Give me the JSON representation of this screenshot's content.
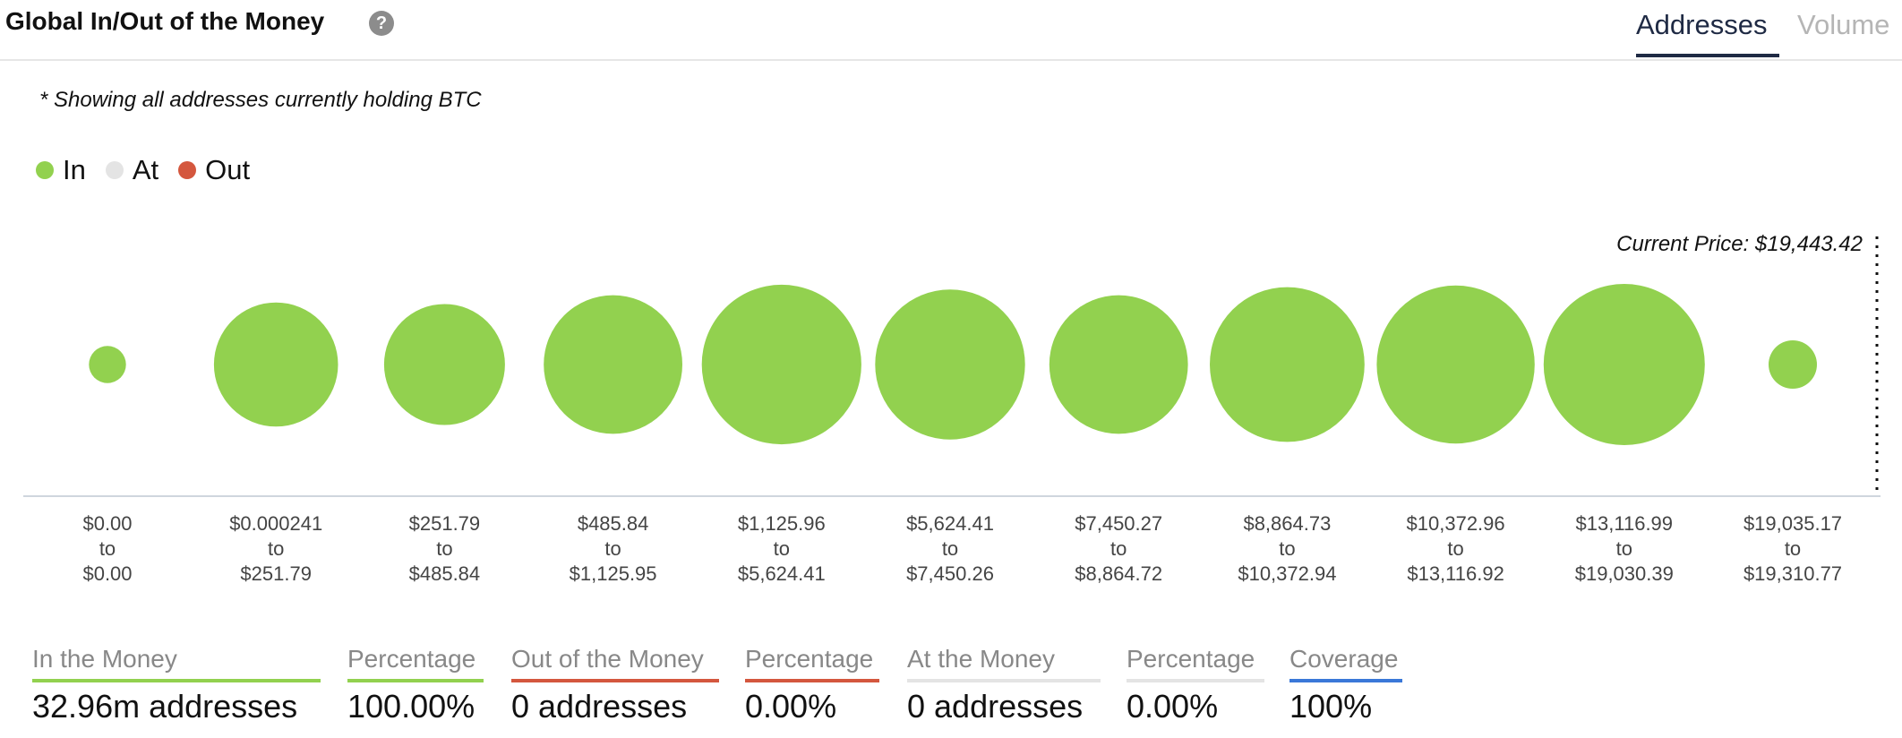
{
  "header": {
    "title": "Global In/Out of the Money",
    "help_icon": "question-circle-icon",
    "tabs": [
      {
        "label": "Addresses",
        "active": true
      },
      {
        "label": "Volume",
        "active": false
      }
    ]
  },
  "note": "* Showing all addresses currently holding BTC",
  "legend": [
    {
      "label": "In",
      "color": "#92d14f"
    },
    {
      "label": "At",
      "color": "#e4e4e4"
    },
    {
      "label": "Out",
      "color": "#d4573e"
    }
  ],
  "chart_data": {
    "type": "bubble",
    "current_price_label": "Current Price: $19,443.42",
    "series": [
      {
        "name": "In",
        "color": "#92d14f"
      }
    ],
    "categories": [
      {
        "from": "$0.00",
        "to": "$0.00",
        "relative_size": 0.23
      },
      {
        "from": "$0.000241",
        "to": "$251.79",
        "relative_size": 0.77
      },
      {
        "from": "$251.79",
        "to": "$485.84",
        "relative_size": 0.75
      },
      {
        "from": "$485.84",
        "to": "$1,125.95",
        "relative_size": 0.86
      },
      {
        "from": "$1,125.96",
        "to": "$5,624.41",
        "relative_size": 0.99
      },
      {
        "from": "$5,624.41",
        "to": "$7,450.26",
        "relative_size": 0.93
      },
      {
        "from": "$7,450.27",
        "to": "$8,864.72",
        "relative_size": 0.86
      },
      {
        "from": "$8,864.73",
        "to": "$10,372.94",
        "relative_size": 0.96
      },
      {
        "from": "$10,372.96",
        "to": "$13,116.92",
        "relative_size": 0.98
      },
      {
        "from": "$13,116.99",
        "to": "$19,030.39",
        "relative_size": 1.0
      },
      {
        "from": "$19,035.17",
        "to": "$19,310.77",
        "relative_size": 0.3
      }
    ],
    "range_connector": "to",
    "grid": false
  },
  "stats": [
    {
      "label": "In the Money",
      "value": "32.96m addresses",
      "color": "#92d14f"
    },
    {
      "label": "Percentage",
      "value": "100.00%",
      "color": "#92d14f"
    },
    {
      "label": "Out of the Money",
      "value": "0 addresses",
      "color": "#d4573e"
    },
    {
      "label": "Percentage",
      "value": "0.00%",
      "color": "#d4573e"
    },
    {
      "label": "At the Money",
      "value": "0 addresses",
      "color": "#e4e4e4"
    },
    {
      "label": "Percentage",
      "value": "0.00%",
      "color": "#e4e4e4"
    },
    {
      "label": "Coverage",
      "value": "100%",
      "color": "#3a78d8"
    }
  ]
}
